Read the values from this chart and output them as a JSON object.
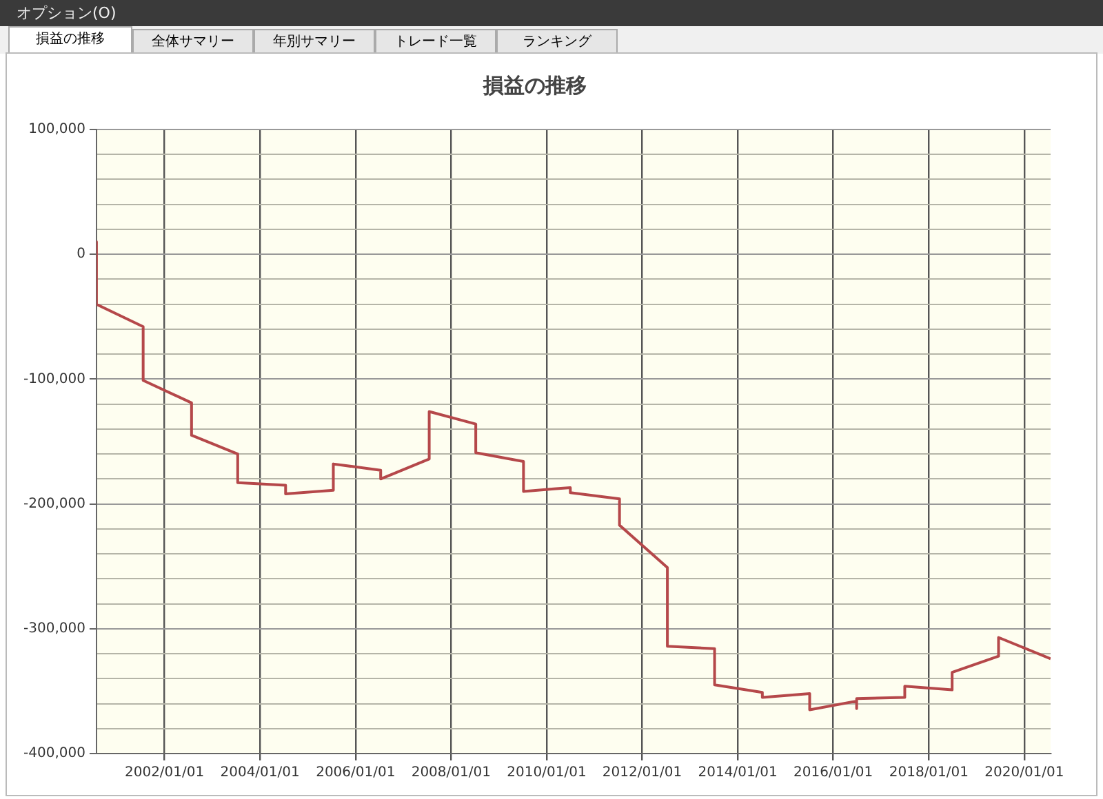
{
  "chart_data": {
    "type": "line",
    "title": "損益の推移",
    "annotations": [
      "オプション(O)",
      "損益の推移",
      "全体サマリー",
      "年別サマリー",
      "トレード一覧",
      "ランキング"
    ],
    "x": [
      "2000-07-30",
      "2000-07-30",
      "2001-07-22",
      "2001-07-22",
      "2002-07-27",
      "2002-07-27",
      "2003-07-15",
      "2003-07-15",
      "2004-07-15",
      "2004-07-15",
      "2005-07-15",
      "2005-07-15",
      "2006-07-12",
      "2006-07-12",
      "2007-07-18",
      "2007-07-18",
      "2008-07-08",
      "2008-07-08",
      "2009-07-08",
      "2009-07-08",
      "2010-02-25",
      "2010-07-01",
      "2010-07-01",
      "2011-07-12",
      "2011-07-12",
      "2012-07-12",
      "2012-07-12",
      "2013-07-08",
      "2013-07-08",
      "2014-07-08",
      "2014-07-08",
      "2015-07-05",
      "2015-07-05",
      "2016-06-28",
      "2016-06-28",
      "2016-06-28",
      "2017-07-01",
      "2017-07-01",
      "2018-06-28",
      "2018-06-28",
      "2019-06-18",
      "2019-06-18",
      "2020-07-20"
    ],
    "series": [
      {
        "color": "#b5484a",
        "values": [
          10000,
          -40000,
          -58000,
          -101000,
          -119000,
          -145000,
          -160000,
          -183000,
          -185000,
          -192000,
          -189000,
          -168000,
          -173000,
          -180000,
          -164000,
          -126000,
          -136000,
          -159000,
          -166000,
          -190000,
          -188000,
          -187000,
          -191000,
          -196000,
          -217000,
          -251000,
          -314000,
          -316000,
          -345000,
          -351000,
          -355000,
          -352000,
          -365000,
          -358000,
          -364000,
          -356000,
          -355000,
          -346000,
          -349000,
          -335000,
          -322000,
          -307000,
          -324000
        ]
      }
    ],
    "xlim": [
      "2000-07-30",
      "2020-07-20"
    ],
    "xticks": [
      {
        "value": "2002-01-01",
        "label": "2002/01/01"
      },
      {
        "value": "2004-01-01",
        "label": "2004/01/01"
      },
      {
        "value": "2006-01-01",
        "label": "2006/01/01"
      },
      {
        "value": "2008-01-01",
        "label": "2008/01/01"
      },
      {
        "value": "2010-01-01",
        "label": "2010/01/01"
      },
      {
        "value": "2012-01-01",
        "label": "2012/01/01"
      },
      {
        "value": "2014-01-01",
        "label": "2014/01/01"
      },
      {
        "value": "2016-01-01",
        "label": "2016/01/01"
      },
      {
        "value": "2018-01-01",
        "label": "2018/01/01"
      },
      {
        "value": "2020-01-01",
        "label": "2020/01/01"
      }
    ],
    "ylim": [
      -400000,
      100000
    ],
    "yticks": [
      {
        "value": -400000,
        "label": "-400,000"
      },
      {
        "value": -380000,
        "label": null
      },
      {
        "value": -360000,
        "label": null
      },
      {
        "value": -340000,
        "label": null
      },
      {
        "value": -320000,
        "label": null
      },
      {
        "value": -300000,
        "label": "-300,000"
      },
      {
        "value": -280000,
        "label": null
      },
      {
        "value": -260000,
        "label": null
      },
      {
        "value": -240000,
        "label": null
      },
      {
        "value": -220000,
        "label": null
      },
      {
        "value": -200000,
        "label": "-200,000"
      },
      {
        "value": -180000,
        "label": null
      },
      {
        "value": -160000,
        "label": null
      },
      {
        "value": -140000,
        "label": null
      },
      {
        "value": -120000,
        "label": null
      },
      {
        "value": -100000,
        "label": "-100,000"
      },
      {
        "value": -80000,
        "label": null
      },
      {
        "value": -60000,
        "label": null
      },
      {
        "value": -40000,
        "label": null
      },
      {
        "value": -20000,
        "label": null
      },
      {
        "value": 0,
        "label": "0"
      },
      {
        "value": 20000,
        "label": null
      },
      {
        "value": 40000,
        "label": null
      },
      {
        "value": 60000,
        "label": null
      },
      {
        "value": 80000,
        "label": null
      },
      {
        "value": 100000,
        "label": "100,000"
      }
    ],
    "grid": true,
    "legend": false,
    "marker": "none",
    "line_style": "solid"
  }
}
